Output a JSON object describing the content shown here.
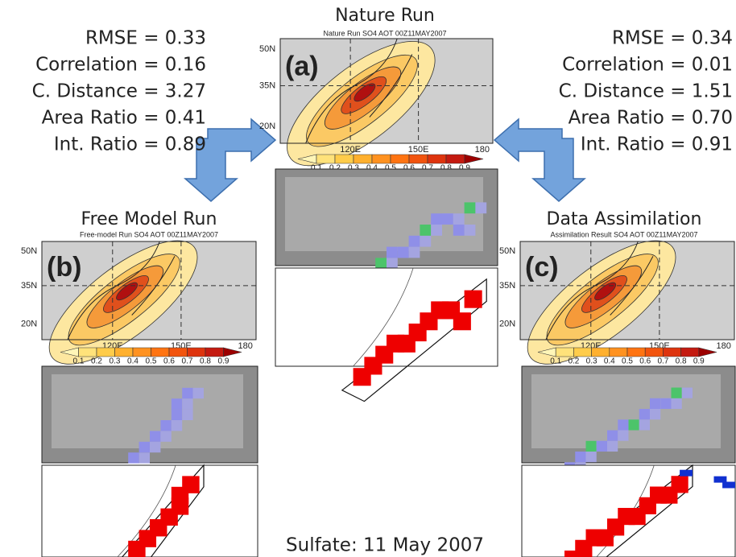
{
  "caption": "Sulfate: 11 May 2007",
  "stats": {
    "left": [
      "RMSE = 0.33",
      "Correlation = 0.16",
      "C. Distance = 3.27",
      "Area Ratio = 0.41",
      "Int. Ratio = 0.89"
    ],
    "right": [
      "RMSE = 0.34",
      "Correlation = 0.01",
      "C. Distance = 1.51",
      "Area Ratio = 0.70",
      "Int. Ratio = 0.91"
    ]
  },
  "panels": [
    {
      "heading": "Nature Run",
      "map_title": "Nature Run SO4 AOT 00Z11MAY2007",
      "letter": "(a)",
      "lat_labels": [
        "50N",
        "35N",
        "20N"
      ],
      "lon_labels": [
        "120E",
        "150E",
        "180"
      ],
      "colorbar_labels": [
        "0.1",
        "0.2",
        "0.3",
        "0.4",
        "0.5",
        "0.6",
        "0.7",
        "0.8",
        "0.9"
      ]
    },
    {
      "heading": "Free Model Run",
      "map_title": "Free-model Run SO4 AOT 00Z11MAY2007",
      "letter": "(b)",
      "lat_labels": [
        "50N",
        "35N",
        "20N"
      ],
      "lon_labels": [
        "120E",
        "150E",
        "180"
      ],
      "colorbar_labels": [
        "0.1",
        "0.2",
        "0.3",
        "0.4",
        "0.5",
        "0.6",
        "0.7",
        "0.8",
        "0.9"
      ]
    },
    {
      "heading": "Data Assimilation",
      "map_title": "Assimilation Result SO4 AOT 00Z11MAY2007",
      "letter": "(c)",
      "lat_labels": [
        "50N",
        "35N",
        "20N"
      ],
      "lon_labels": [
        "120E",
        "150E",
        "180"
      ],
      "colorbar_labels": [
        "0.1",
        "0.2",
        "0.3",
        "0.4",
        "0.5",
        "0.6",
        "0.7",
        "0.8",
        "0.9"
      ]
    }
  ]
}
